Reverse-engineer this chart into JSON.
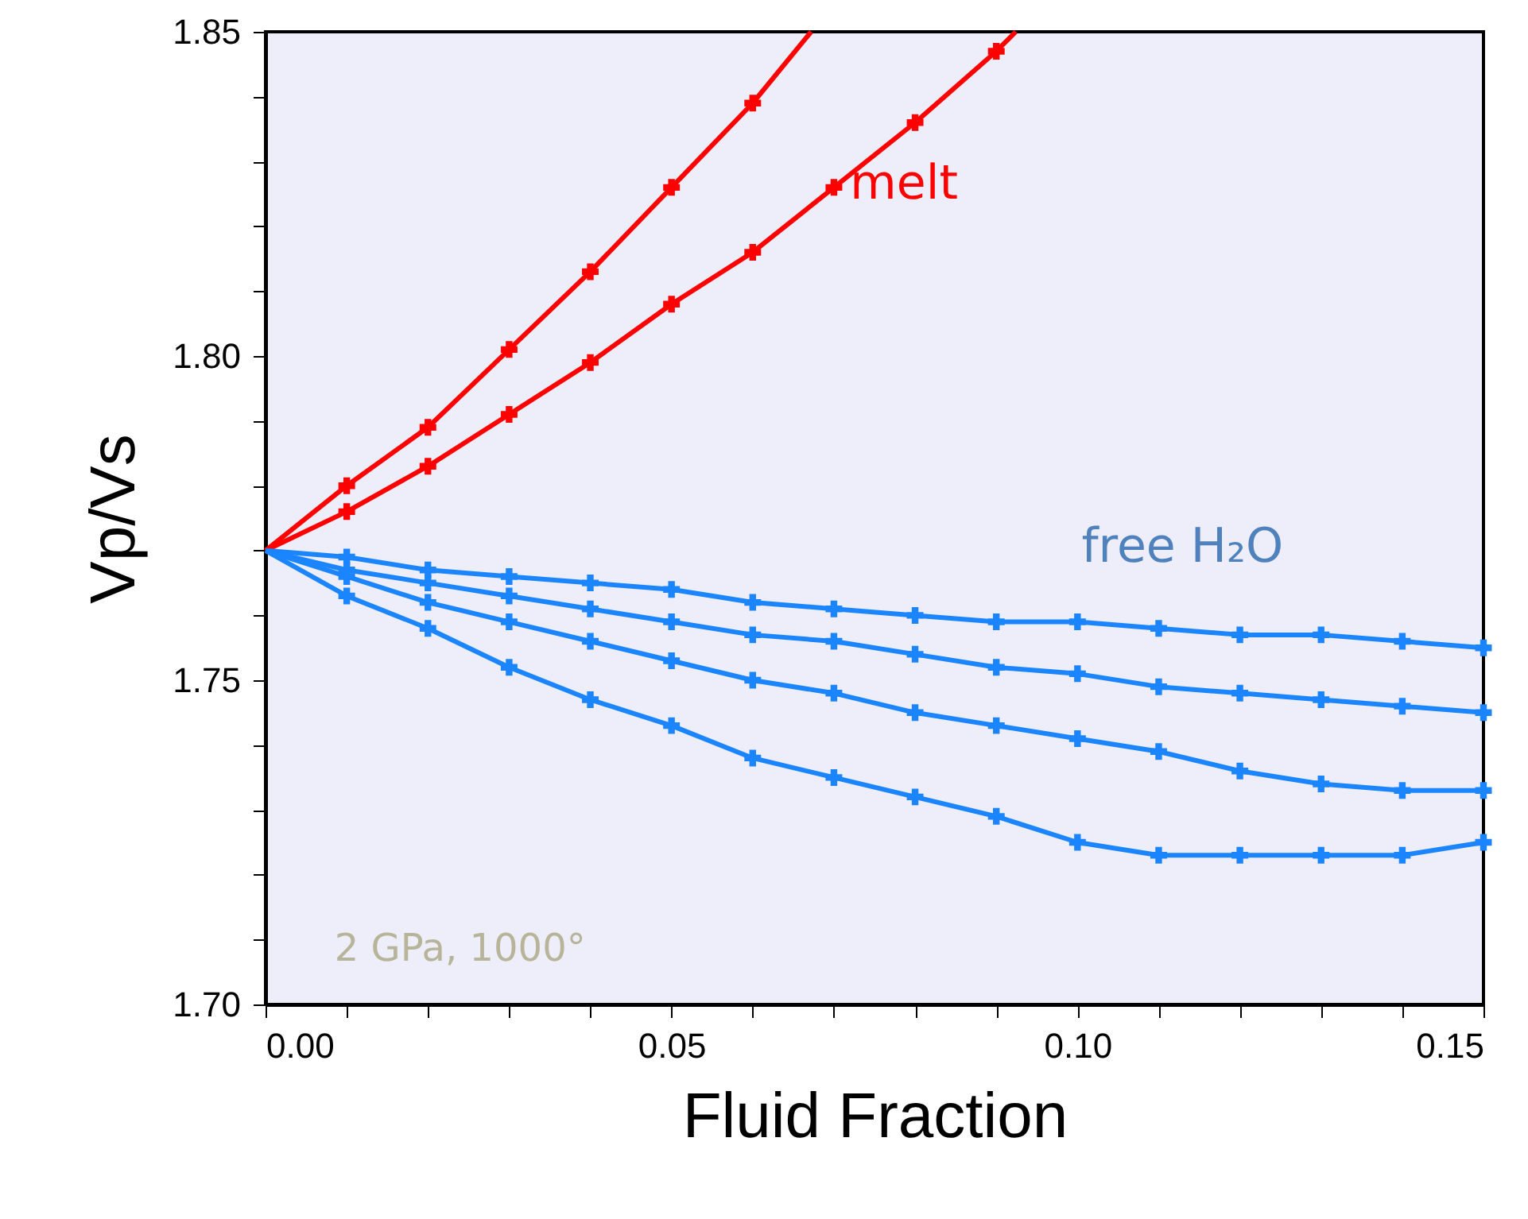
{
  "chart_data": {
    "type": "line",
    "xlabel": "Fluid Fraction",
    "ylabel": "Vp/Vs",
    "xlim": [
      0,
      0.15
    ],
    "ylim": [
      1.7,
      1.85
    ],
    "xticks": [
      {
        "value": 0,
        "label": "0.00"
      },
      {
        "value": 0.01,
        "label": null
      },
      {
        "value": 0.02,
        "label": null
      },
      {
        "value": 0.03,
        "label": null
      },
      {
        "value": 0.04,
        "label": null
      },
      0.05,
      {
        "value": 0.06,
        "label": null
      },
      {
        "value": 0.07,
        "label": null
      },
      {
        "value": 0.08,
        "label": null
      },
      {
        "value": 0.09,
        "label": null
      },
      {
        "value": 0.1,
        "label": "0.10"
      },
      {
        "value": 0.11,
        "label": null
      },
      {
        "value": 0.12,
        "label": null
      },
      {
        "value": 0.13,
        "label": null
      },
      {
        "value": 0.14,
        "label": null
      },
      0.15
    ],
    "yticks": [
      {
        "value": 1.7,
        "label": "1.70"
      },
      {
        "value": 1.71,
        "label": null
      },
      {
        "value": 1.72,
        "label": null
      },
      {
        "value": 1.73,
        "label": null
      },
      {
        "value": 1.74,
        "label": null
      },
      1.75,
      {
        "value": 1.76,
        "label": null
      },
      {
        "value": 1.77,
        "label": null
      },
      {
        "value": 1.78,
        "label": null
      },
      {
        "value": 1.79,
        "label": null
      },
      {
        "value": 1.8,
        "label": "1.80"
      },
      {
        "value": 1.81,
        "label": null
      },
      {
        "value": 1.82,
        "label": null
      },
      {
        "value": 1.83,
        "label": null
      },
      {
        "value": 1.84,
        "label": null
      },
      1.85
    ],
    "grid": false,
    "marker": "cross",
    "line_style": "solid",
    "annotations": [
      "melt",
      "free H₂O",
      "2 GPa, 1000°"
    ],
    "series": [
      {
        "color": "#ff0000",
        "x": [
          0,
          0.01,
          0.02,
          0.03,
          0.04,
          0.05,
          0.06,
          0.0672
        ],
        "values": [
          1.77,
          1.78,
          1.789,
          1.801,
          1.813,
          1.826,
          1.839,
          1.85
        ]
      },
      {
        "color": "#ff0000",
        "x": [
          0,
          0.01,
          0.02,
          0.03,
          0.04,
          0.05,
          0.06,
          0.07,
          0.08,
          0.09,
          0.0924
        ],
        "values": [
          1.77,
          1.776,
          1.783,
          1.791,
          1.799,
          1.808,
          1.816,
          1.826,
          1.836,
          1.847,
          1.85
        ]
      },
      {
        "color": "#1a85ff",
        "x": [
          0,
          0.01,
          0.02,
          0.03,
          0.04,
          0.05,
          0.06,
          0.07,
          0.08,
          0.09,
          0.1,
          0.11,
          0.12,
          0.13,
          0.14,
          0.15
        ],
        "values": [
          1.77,
          1.769,
          1.767,
          1.766,
          1.765,
          1.764,
          1.762,
          1.761,
          1.76,
          1.759,
          1.759,
          1.758,
          1.757,
          1.757,
          1.756,
          1.755
        ]
      },
      {
        "color": "#1a85ff",
        "x": [
          0,
          0.01,
          0.02,
          0.03,
          0.04,
          0.05,
          0.06,
          0.07,
          0.08,
          0.09,
          0.1,
          0.11,
          0.12,
          0.13,
          0.14,
          0.15
        ],
        "values": [
          1.77,
          1.767,
          1.765,
          1.763,
          1.761,
          1.759,
          1.757,
          1.756,
          1.754,
          1.752,
          1.751,
          1.749,
          1.748,
          1.747,
          1.746,
          1.745
        ]
      },
      {
        "color": "#1a85ff",
        "x": [
          0,
          0.01,
          0.02,
          0.03,
          0.04,
          0.05,
          0.06,
          0.07,
          0.08,
          0.09,
          0.1,
          0.11,
          0.12,
          0.13,
          0.14,
          0.15
        ],
        "values": [
          1.77,
          1.766,
          1.762,
          1.759,
          1.756,
          1.753,
          1.75,
          1.748,
          1.745,
          1.743,
          1.741,
          1.739,
          1.736,
          1.734,
          1.733,
          1.733
        ]
      },
      {
        "color": "#1a85ff",
        "x": [
          0,
          0.01,
          0.02,
          0.03,
          0.04,
          0.05,
          0.06,
          0.07,
          0.08,
          0.09,
          0.1,
          0.11,
          0.12,
          0.13,
          0.14,
          0.15
        ],
        "values": [
          1.77,
          1.763,
          1.758,
          1.752,
          1.747,
          1.743,
          1.738,
          1.735,
          1.732,
          1.729,
          1.725,
          1.723,
          1.723,
          1.723,
          1.723,
          1.725
        ]
      }
    ]
  }
}
